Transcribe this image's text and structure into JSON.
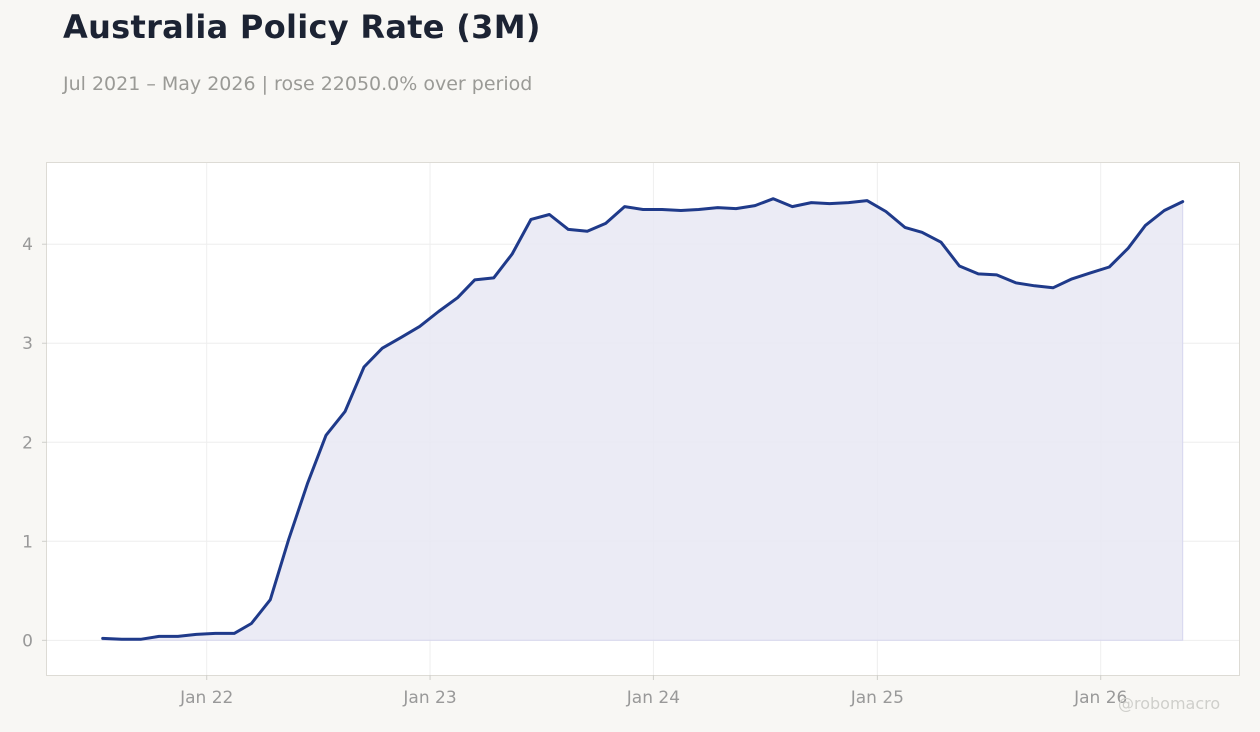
{
  "header": {
    "title": "Australia Policy Rate (3M)",
    "subtitle": "Jul 2021 – May 2026 | rose 22050.0% over period"
  },
  "watermark": "@robomacro",
  "colors": {
    "line": "#1f3a8a",
    "area": "#e8e8f3",
    "background": "#f8f7f4",
    "plot_background": "#ffffff",
    "grid": "#eeeeee",
    "tick_text": "#999999"
  },
  "chart_data": {
    "type": "area",
    "title": "Australia Policy Rate (3M)",
    "subtitle": "Jul 2021 – May 2026 | rose 22050.0% over period",
    "xlabel": "",
    "ylabel": "",
    "x_ticks": [
      {
        "date": "2022-01-01",
        "label": "Jan 22"
      },
      {
        "date": "2023-01-01",
        "label": "Jan 23"
      },
      {
        "date": "2024-01-01",
        "label": "Jan 24"
      },
      {
        "date": "2025-01-01",
        "label": "Jan 25"
      },
      {
        "date": "2026-01-01",
        "label": "Jan 26"
      }
    ],
    "y_ticks": [
      0,
      1,
      2,
      3,
      4
    ],
    "xlim": [
      "2021-04-15",
      "2026-08-15"
    ],
    "ylim": [
      -0.35,
      4.82
    ],
    "grid": true,
    "legend": "none",
    "series": [
      {
        "x": [
          "2021-07",
          "2021-08",
          "2021-09",
          "2021-10",
          "2021-11",
          "2021-12",
          "2022-01",
          "2022-02",
          "2022-03",
          "2022-04",
          "2022-05",
          "2022-06",
          "2022-07",
          "2022-08",
          "2022-09",
          "2022-10",
          "2022-11",
          "2022-12",
          "2023-01",
          "2023-02",
          "2023-03",
          "2023-04",
          "2023-05",
          "2023-06",
          "2023-07",
          "2023-08",
          "2023-09",
          "2023-10",
          "2023-11",
          "2023-12",
          "2024-01",
          "2024-02",
          "2024-03",
          "2024-04",
          "2024-05",
          "2024-06",
          "2024-07",
          "2024-08",
          "2024-09",
          "2024-10",
          "2024-11",
          "2024-12",
          "2025-01",
          "2025-02",
          "2025-03",
          "2025-04",
          "2025-05",
          "2025-06",
          "2025-07",
          "2025-08",
          "2025-09",
          "2025-10",
          "2025-11",
          "2025-12",
          "2026-01",
          "2026-02",
          "2026-03",
          "2026-04",
          "2026-05"
        ],
        "values": [
          0.02,
          0.01,
          0.01,
          0.04,
          0.04,
          0.06,
          0.07,
          0.07,
          0.17,
          0.41,
          1.02,
          1.59,
          2.07,
          2.31,
          2.76,
          2.95,
          3.06,
          3.17,
          3.32,
          3.46,
          3.64,
          3.66,
          3.9,
          4.25,
          4.3,
          4.15,
          4.13,
          4.21,
          4.38,
          4.35,
          4.35,
          4.34,
          4.35,
          4.37,
          4.36,
          4.39,
          4.46,
          4.38,
          4.42,
          4.41,
          4.42,
          4.44,
          4.33,
          4.17,
          4.12,
          4.02,
          3.78,
          3.7,
          3.69,
          3.61,
          3.58,
          3.56,
          3.65,
          3.71,
          3.77,
          3.96,
          4.19,
          4.34,
          4.43
        ]
      }
    ]
  }
}
